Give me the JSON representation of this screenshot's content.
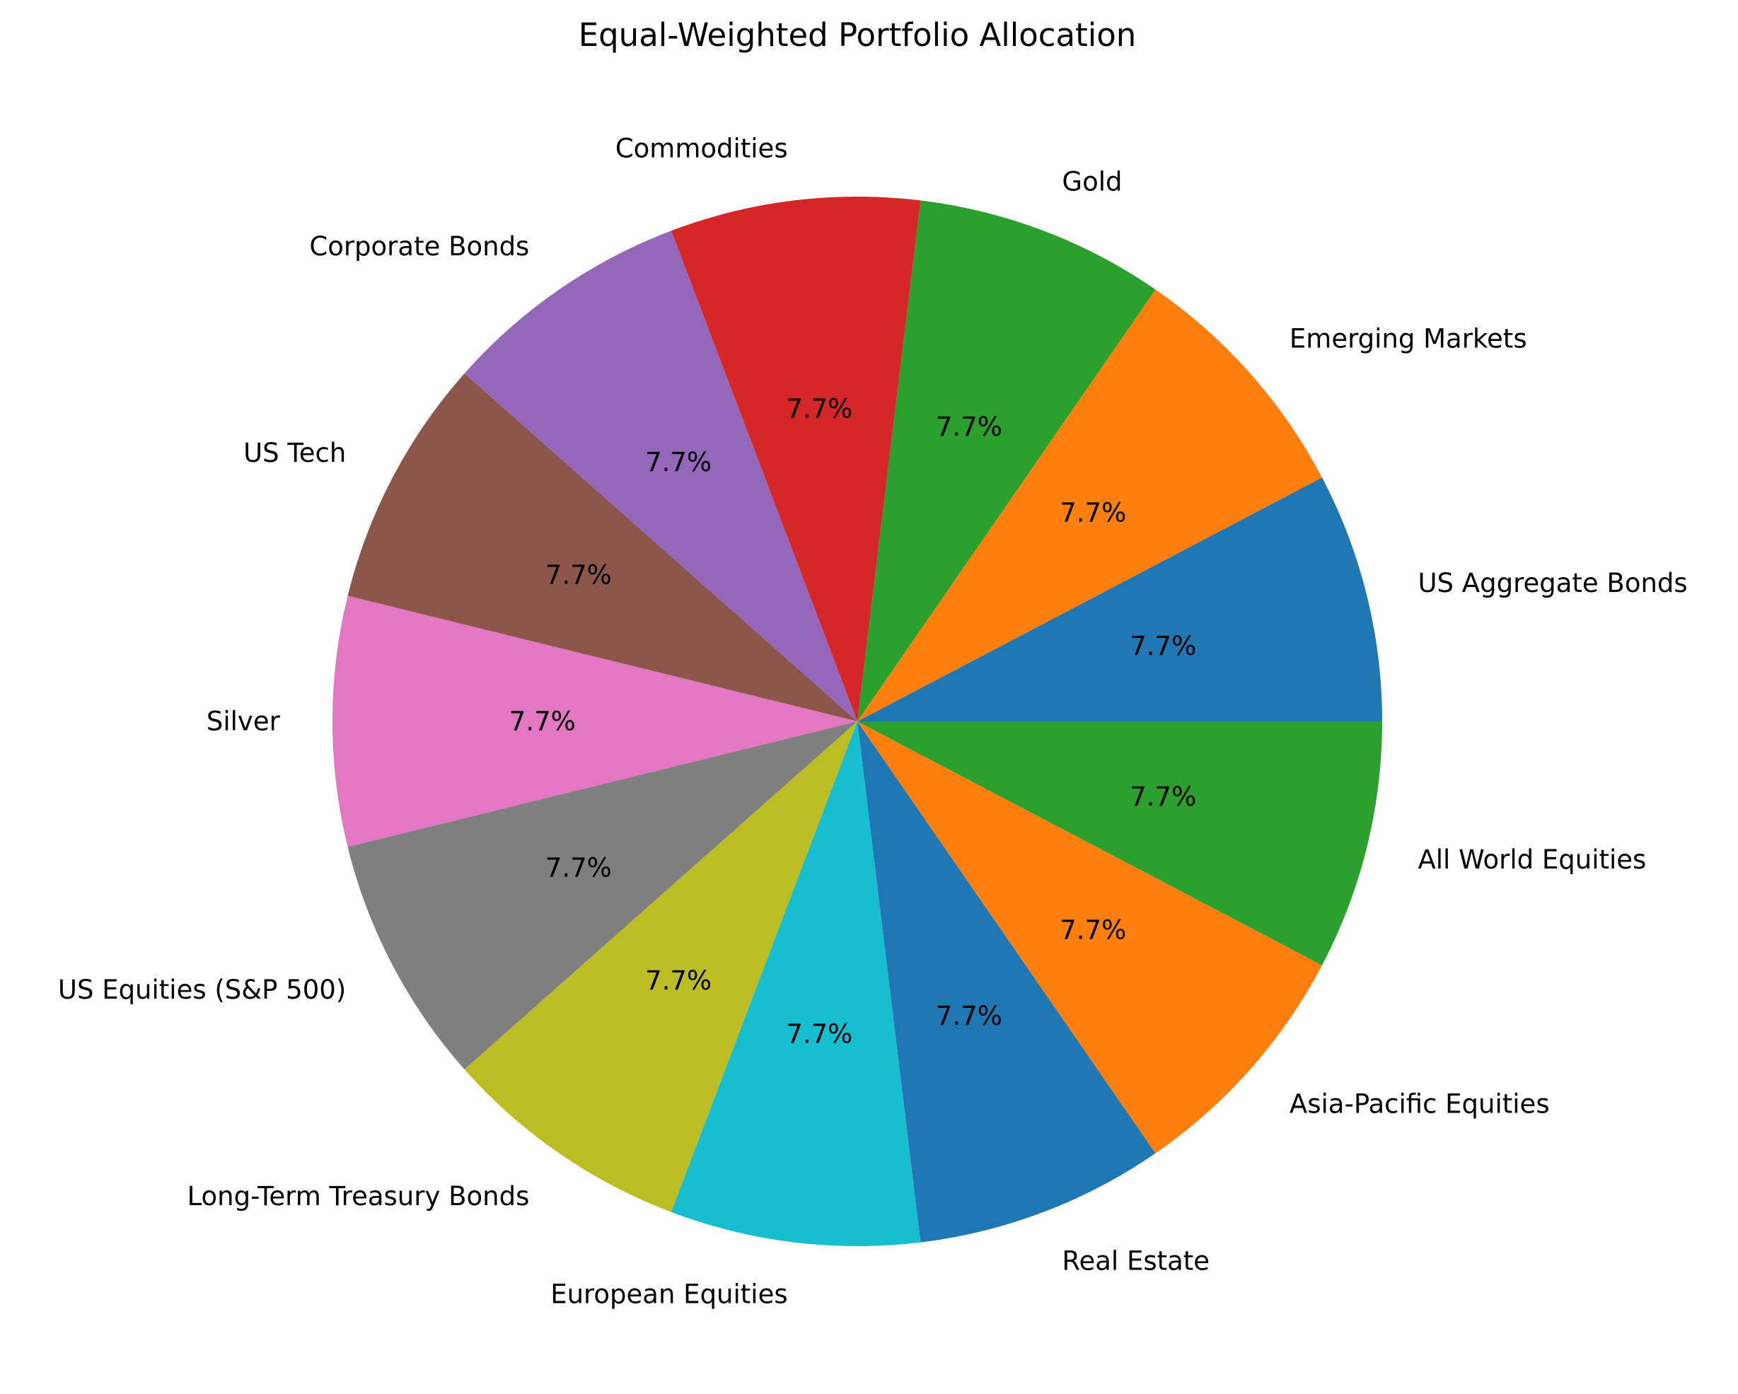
{
  "chart_data": {
    "type": "pie",
    "title": "Equal-Weighted Portfolio Allocation",
    "start_angle_deg": 0,
    "direction": "counterclockwise",
    "slices": [
      {
        "label": "US Aggregate Bonds",
        "value": 1,
        "percent_label": "7.7%",
        "color": "#1f77b4"
      },
      {
        "label": "Emerging Markets",
        "value": 1,
        "percent_label": "7.7%",
        "color": "#ff7f0e"
      },
      {
        "label": "Gold",
        "value": 1,
        "percent_label": "7.7%",
        "color": "#2ca02c"
      },
      {
        "label": "Commodities",
        "value": 1,
        "percent_label": "7.7%",
        "color": "#d62728"
      },
      {
        "label": "Corporate Bonds",
        "value": 1,
        "percent_label": "7.7%",
        "color": "#9467bd"
      },
      {
        "label": "US Tech",
        "value": 1,
        "percent_label": "7.7%",
        "color": "#8c564b"
      },
      {
        "label": "Silver",
        "value": 1,
        "percent_label": "7.7%",
        "color": "#e377c2"
      },
      {
        "label": "US Equities (S&P 500)",
        "value": 1,
        "percent_label": "7.7%",
        "color": "#7f7f7f"
      },
      {
        "label": "Long-Term Treasury Bonds",
        "value": 1,
        "percent_label": "7.7%",
        "color": "#bcbd22"
      },
      {
        "label": "European Equities",
        "value": 1,
        "percent_label": "7.7%",
        "color": "#17becf"
      },
      {
        "label": "Real Estate",
        "value": 1,
        "percent_label": "7.7%",
        "color": "#1f77b4"
      },
      {
        "label": "Asia-Pacific Equities",
        "value": 1,
        "percent_label": "7.7%",
        "color": "#ff7f0e"
      },
      {
        "label": "All World Equities",
        "value": 1,
        "percent_label": "7.7%",
        "color": "#2ca02c"
      }
    ]
  }
}
